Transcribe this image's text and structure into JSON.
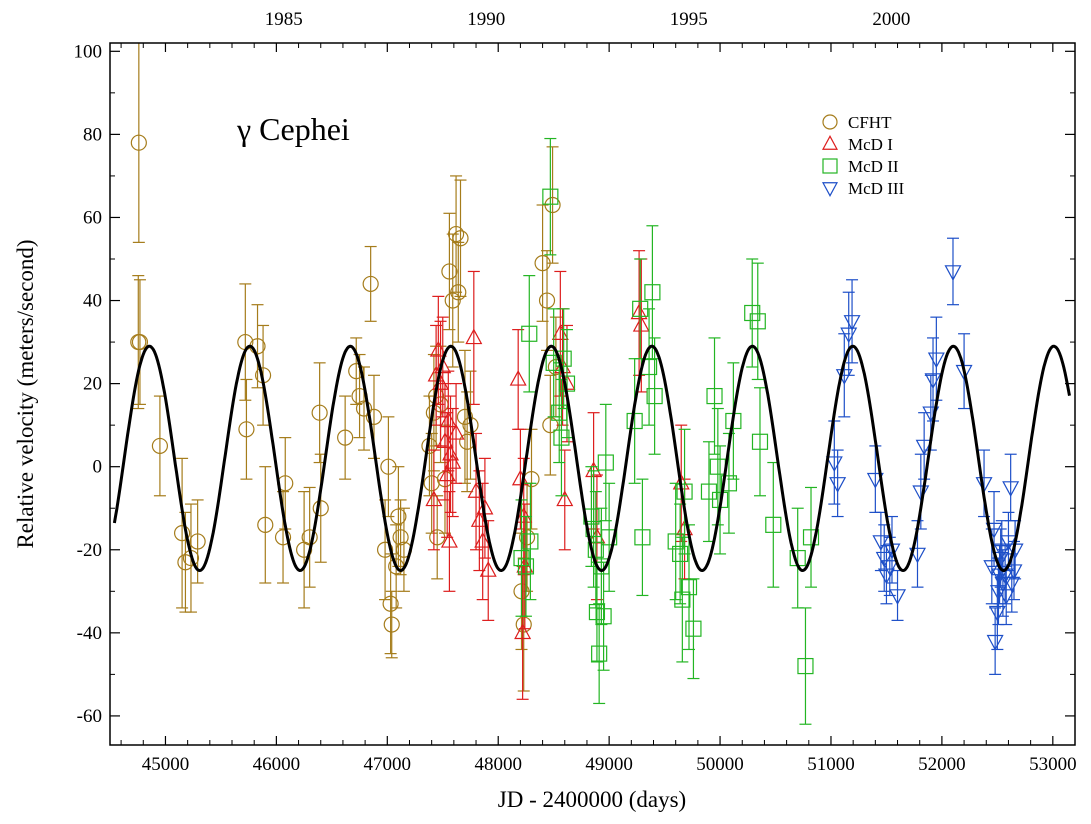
{
  "chart_data": {
    "type": "scatter",
    "title": "γ Cephei",
    "xlabel": "JD - 2400000 (days)",
    "ylabel": "Relative velocity (meters/second)",
    "xlim": [
      44500,
      53200
    ],
    "ylim": [
      -67,
      102
    ],
    "x_ticks": [
      45000,
      46000,
      47000,
      48000,
      49000,
      50000,
      51000,
      52000,
      53000
    ],
    "y_ticks": [
      -60,
      -40,
      -20,
      0,
      20,
      40,
      60,
      80,
      100
    ],
    "top_axis": {
      "ticks": [
        {
          "jd": 46066,
          "label": "1985"
        },
        {
          "jd": 47892,
          "label": "1990"
        },
        {
          "jd": 49718,
          "label": "1995"
        },
        {
          "jd": 51544,
          "label": "2000"
        }
      ]
    },
    "legend_position": "top-right",
    "grid": false,
    "model_curve": {
      "color": "#000000",
      "period": 906,
      "amplitude": 27,
      "offset": 2,
      "peak_jd": 44855,
      "x_start": 44540,
      "x_end": 53150
    },
    "series": [
      {
        "name": "CFHT",
        "marker": "circle",
        "color": "#a57c1b",
        "points": [
          [
            44760,
            78,
            24
          ],
          [
            44755,
            30,
            16
          ],
          [
            44770,
            30,
            15
          ],
          [
            44950,
            5,
            12
          ],
          [
            45150,
            -16,
            18
          ],
          [
            45180,
            -23,
            12
          ],
          [
            45230,
            -22,
            13
          ],
          [
            45290,
            -18,
            10
          ],
          [
            45720,
            30,
            14
          ],
          [
            45730,
            9,
            12
          ],
          [
            45830,
            29,
            10
          ],
          [
            45880,
            22,
            12
          ],
          [
            45900,
            -14,
            14
          ],
          [
            46060,
            -17,
            11
          ],
          [
            46080,
            -4,
            11
          ],
          [
            46250,
            -20,
            14
          ],
          [
            46300,
            -17,
            12
          ],
          [
            46390,
            13,
            12
          ],
          [
            46400,
            -10,
            13
          ],
          [
            46620,
            7,
            10
          ],
          [
            46720,
            23,
            8
          ],
          [
            46750,
            17,
            10
          ],
          [
            46790,
            14,
            10
          ],
          [
            46850,
            44,
            9
          ],
          [
            46880,
            12,
            10
          ],
          [
            46980,
            -20,
            12
          ],
          [
            47010,
            0,
            12
          ],
          [
            47030,
            -33,
            12
          ],
          [
            47040,
            -38,
            8
          ],
          [
            47080,
            -24,
            10
          ],
          [
            47100,
            -12,
            12
          ],
          [
            47120,
            -17,
            9
          ],
          [
            47150,
            -20,
            10
          ],
          [
            47380,
            5,
            12
          ],
          [
            47400,
            -4,
            12
          ],
          [
            47420,
            13,
            14
          ],
          [
            47440,
            17,
            12
          ],
          [
            47450,
            -17,
            10
          ],
          [
            47480,
            15,
            14
          ],
          [
            47520,
            -3,
            13
          ],
          [
            47560,
            47,
            14
          ],
          [
            47590,
            40,
            16
          ],
          [
            47620,
            56,
            14
          ],
          [
            47640,
            42,
            12
          ],
          [
            47660,
            55,
            14
          ],
          [
            47700,
            12,
            16
          ],
          [
            47720,
            6,
            12
          ],
          [
            47750,
            10,
            13
          ],
          [
            48210,
            -30,
            14
          ],
          [
            48230,
            -38,
            16
          ],
          [
            48260,
            -17,
            13
          ],
          [
            48300,
            -3,
            12
          ],
          [
            48400,
            49,
            14
          ],
          [
            48440,
            40,
            12
          ],
          [
            48470,
            10,
            12
          ],
          [
            48490,
            63,
            14
          ],
          [
            48520,
            24,
            12
          ]
        ]
      },
      {
        "name": "McD I",
        "marker": "triangle-up",
        "color": "#dd1d1d",
        "points": [
          [
            47420,
            -8,
            12
          ],
          [
            47440,
            22,
            12
          ],
          [
            47460,
            28,
            13
          ],
          [
            47480,
            20,
            15
          ],
          [
            47500,
            24,
            12
          ],
          [
            47520,
            6,
            14
          ],
          [
            47540,
            -2,
            15
          ],
          [
            47550,
            11,
            12
          ],
          [
            47560,
            -18,
            12
          ],
          [
            47570,
            3,
            14
          ],
          [
            47590,
            1,
            13
          ],
          [
            47620,
            8,
            12
          ],
          [
            47780,
            31,
            16
          ],
          [
            47800,
            -6,
            14
          ],
          [
            47830,
            -13,
            12
          ],
          [
            47860,
            -18,
            14
          ],
          [
            47880,
            -10,
            12
          ],
          [
            47910,
            -25,
            12
          ],
          [
            48180,
            21,
            12
          ],
          [
            48200,
            -3,
            12
          ],
          [
            48220,
            -40,
            16
          ],
          [
            48230,
            -12,
            14
          ],
          [
            48240,
            -24,
            15
          ],
          [
            48560,
            32,
            15
          ],
          [
            48580,
            24,
            14
          ],
          [
            48600,
            -8,
            12
          ],
          [
            48620,
            20,
            14
          ],
          [
            48860,
            -1,
            14
          ],
          [
            48890,
            -17,
            15
          ],
          [
            49270,
            37,
            15
          ],
          [
            49290,
            34,
            16
          ],
          [
            49650,
            -4,
            14
          ],
          [
            49680,
            -15,
            12
          ]
        ]
      },
      {
        "name": "McD II",
        "marker": "square",
        "color": "#23b523",
        "points": [
          [
            48210,
            -22,
            14
          ],
          [
            48250,
            -24,
            12
          ],
          [
            48280,
            32,
            14
          ],
          [
            48290,
            -18,
            14
          ],
          [
            48470,
            65,
            14
          ],
          [
            48500,
            25,
            13
          ],
          [
            48550,
            13,
            12
          ],
          [
            48570,
            7,
            14
          ],
          [
            48590,
            26,
            12
          ],
          [
            48620,
            20,
            13
          ],
          [
            48840,
            -12,
            12
          ],
          [
            48860,
            -15,
            14
          ],
          [
            48880,
            -20,
            14
          ],
          [
            48890,
            -35,
            12
          ],
          [
            48910,
            -45,
            12
          ],
          [
            48930,
            -24,
            14
          ],
          [
            48950,
            -36,
            13
          ],
          [
            48970,
            1,
            14
          ],
          [
            49000,
            -17,
            13
          ],
          [
            49230,
            11,
            15
          ],
          [
            49280,
            38,
            12
          ],
          [
            49300,
            -17,
            14
          ],
          [
            49360,
            24,
            14
          ],
          [
            49390,
            42,
            16
          ],
          [
            49410,
            17,
            14
          ],
          [
            49600,
            -18,
            14
          ],
          [
            49640,
            -21,
            12
          ],
          [
            49660,
            -32,
            15
          ],
          [
            49680,
            -6,
            15
          ],
          [
            49720,
            -29,
            15
          ],
          [
            49760,
            -39,
            12
          ],
          [
            49900,
            -6,
            12
          ],
          [
            49950,
            17,
            14
          ],
          [
            49980,
            0,
            14
          ],
          [
            50000,
            -8,
            13
          ],
          [
            50080,
            -4,
            12
          ],
          [
            50120,
            11,
            14
          ],
          [
            50290,
            37,
            13
          ],
          [
            50340,
            35,
            14
          ],
          [
            50360,
            6,
            13
          ],
          [
            50480,
            -14,
            15
          ],
          [
            50700,
            -22,
            12
          ],
          [
            50770,
            -48,
            14
          ],
          [
            50820,
            -17,
            12
          ]
        ]
      },
      {
        "name": "McD III",
        "marker": "triangle-down",
        "color": "#1d4fc8",
        "points": [
          [
            51030,
            1,
            10
          ],
          [
            51060,
            -4,
            8
          ],
          [
            51120,
            22,
            10
          ],
          [
            51160,
            32,
            10
          ],
          [
            51190,
            35,
            10
          ],
          [
            51400,
            -3,
            8
          ],
          [
            51450,
            -18,
            7
          ],
          [
            51480,
            -22,
            8
          ],
          [
            51500,
            -26,
            7
          ],
          [
            51530,
            -24,
            7
          ],
          [
            51550,
            -20,
            8
          ],
          [
            51600,
            -31,
            6
          ],
          [
            51780,
            -21,
            8
          ],
          [
            51810,
            -6,
            9
          ],
          [
            51840,
            5,
            8
          ],
          [
            51900,
            13,
            9
          ],
          [
            51920,
            21,
            10
          ],
          [
            51950,
            26,
            10
          ],
          [
            52100,
            47,
            8
          ],
          [
            52200,
            23,
            9
          ],
          [
            52380,
            -4,
            8
          ],
          [
            52450,
            -24,
            9
          ],
          [
            52470,
            -15,
            9
          ],
          [
            52480,
            -42,
            8
          ],
          [
            52500,
            -35,
            9
          ],
          [
            52510,
            -30,
            8
          ],
          [
            52520,
            -26,
            7
          ],
          [
            52530,
            -22,
            7
          ],
          [
            52540,
            -20,
            7
          ],
          [
            52550,
            -28,
            8
          ],
          [
            52570,
            -26,
            7
          ],
          [
            52580,
            -31,
            7
          ],
          [
            52600,
            -18,
            7
          ],
          [
            52620,
            -5,
            8
          ],
          [
            52630,
            -28,
            7
          ],
          [
            52650,
            -25,
            7
          ],
          [
            52660,
            -20,
            7
          ]
        ]
      }
    ]
  }
}
